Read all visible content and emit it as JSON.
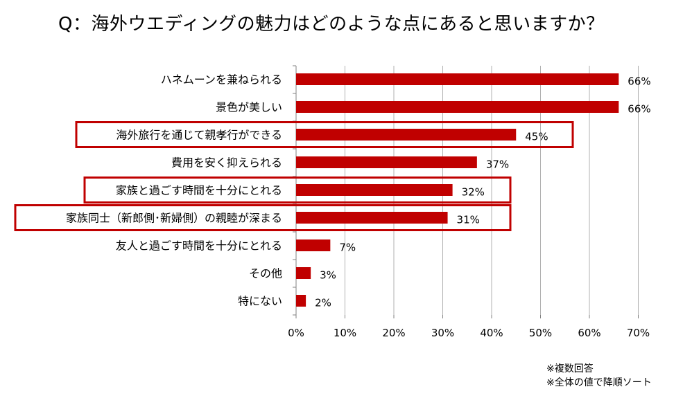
{
  "title": "Q：海外ウエディングの魅力はどのような点にあると思いますか？",
  "notes": [
    "※複数回答",
    "※全体の値で降順ソート"
  ],
  "colors": {
    "bar": "#C00000",
    "highlight_box": "#C00000",
    "grid": "#B0B0B0",
    "axis": "#808080"
  },
  "chart_data": {
    "type": "bar",
    "orientation": "horizontal",
    "title": "Q：海外ウエディングの魅力はどのような点にあると思いますか？",
    "categories": [
      "ハネムーンを兼ねられる",
      "景色が美しい",
      "海外旅行を通じて親孝行ができる",
      "費用を安く抑えられる",
      "家族と過ごす時間を十分にとれる",
      "家族同士（新郎側･新婦側）の親睦が深まる",
      "友人と過ごす時間を十分にとれる",
      "その他",
      "特にない"
    ],
    "values": [
      66,
      66,
      45,
      37,
      32,
      31,
      7,
      3,
      2
    ],
    "value_labels": [
      "66%",
      "66%",
      "45%",
      "37%",
      "32%",
      "31%",
      "7%",
      "3%",
      "2%"
    ],
    "xlim": [
      0,
      70
    ],
    "xticks": [
      "0%",
      "10%",
      "20%",
      "30%",
      "40%",
      "50%",
      "60%",
      "70%"
    ],
    "grid": "vertical",
    "highlighted_categories": [
      "海外旅行を通じて親孝行ができる",
      "家族と過ごす時間を十分にとれる",
      "家族同士（新郎側･新婦側）の親睦が深まる"
    ]
  }
}
